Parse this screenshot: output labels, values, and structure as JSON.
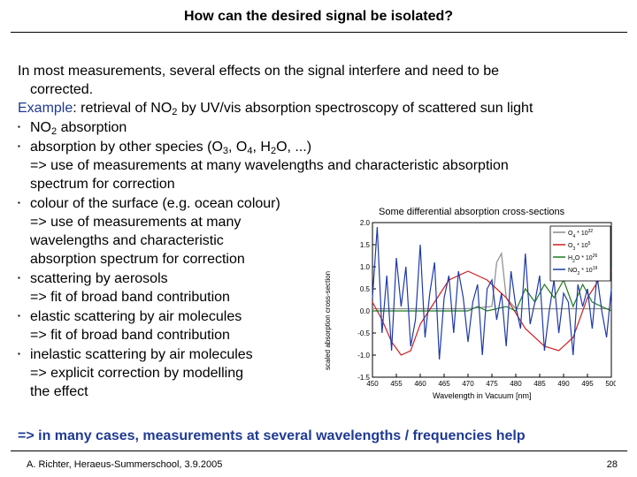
{
  "slide": {
    "title": "How can the desired signal be isolated?",
    "intro_1": "In most measurements, several effects on the signal interfere and need to be",
    "intro_2": "corrected.",
    "example_label": "Example",
    "example_text_a": ": retrieval of NO",
    "example_sub": "2",
    "example_text_b": " by UV/vis absorption spectroscopy of scattered sun light",
    "bullets": {
      "b1_a": "NO",
      "b1_sub": "2",
      "b1_b": " absorption",
      "b2_a": "absorption by other species (O",
      "b2_sub1": "3",
      "b2_b": ", O",
      "b2_sub2": "4",
      "b2_c": ", H",
      "b2_sub3": "2",
      "b2_d": "O, ...)",
      "b2_l2": "=> use of measurements at many wavelengths and characteristic absorption",
      "b2_l3": "spectrum for correction",
      "b3_l1": "colour of the surface (e.g. ocean colour)",
      "b3_l2": "=> use of measurements at many",
      "b3_l3": "wavelengths and characteristic",
      "b3_l4": "absorption spectrum for correction",
      "b4_l1": "scattering by aerosols",
      "b4_l2": "=> fit of broad band contribution",
      "b5_l1": "elastic scattering by air molecules",
      "b5_l2": "=> fit of broad band contribution",
      "b6_l1": "inelastic scattering by air molecules",
      "b6_l2": "=> explicit correction by modelling",
      "b6_l3": "the effect"
    },
    "conclusion": "=> in many cases, measurements at several wavelengths / frequencies help",
    "footer_left": "A. Richter, Heraeus-Summerschool, 3.9.2005",
    "page_number": "28"
  },
  "chart_data": {
    "type": "line",
    "title": "Some differential absorption cross-sections",
    "xlabel": "Wavelength in Vacuum [nm]",
    "ylabel": "scaled absorption cross-section",
    "xlim": [
      450,
      500
    ],
    "ylim": [
      -1.5,
      2.0
    ],
    "xticks": [
      "450",
      "455",
      "460",
      "465",
      "470",
      "475",
      "480",
      "485",
      "490",
      "495",
      "500"
    ],
    "yticks": [
      "-1.5",
      "-1.0",
      "-0.5",
      "0.0",
      "0.5",
      "1.0",
      "1.5",
      "2.0"
    ],
    "series": [
      {
        "name": "O",
        "sub": "4",
        "scale": " * 10",
        "exp": "32",
        "color": "#8c8c8c",
        "x": [
          450,
          455,
          460,
          465,
          470,
          475,
          476,
          477,
          478,
          480,
          485,
          490,
          495,
          500
        ],
        "y": [
          0.05,
          0.05,
          0.05,
          0.05,
          0.05,
          0.1,
          1.1,
          1.3,
          0.3,
          0.05,
          0.05,
          0.05,
          0.05,
          0.05
        ]
      },
      {
        "name": "O",
        "sub": "3",
        "scale": " * 10",
        "exp": "5",
        "color": "#d02020",
        "x": [
          450,
          452,
          454,
          456,
          458,
          460,
          463,
          466,
          470,
          474,
          478,
          482,
          486,
          489,
          492,
          495,
          498,
          500
        ],
        "y": [
          0.2,
          -0.2,
          -0.7,
          -1.0,
          -0.9,
          -0.3,
          0.2,
          0.7,
          0.9,
          0.7,
          0.3,
          -0.4,
          -0.8,
          -0.9,
          -0.6,
          0.3,
          0.8,
          0.9
        ]
      },
      {
        "name": "H",
        "sub": "2",
        "tail": "O",
        "scale": " * 10",
        "exp": "26",
        "color": "#1f7a1f",
        "x": [
          450,
          460,
          468,
          470,
          472,
          474,
          476,
          478,
          480,
          482,
          484,
          486,
          488,
          490,
          492,
          494,
          496,
          500
        ],
        "y": [
          0.0,
          0.0,
          0.0,
          0.0,
          0.1,
          0.0,
          0.05,
          0.1,
          0.0,
          0.5,
          0.2,
          0.6,
          0.3,
          0.7,
          0.1,
          0.6,
          0.2,
          0.0
        ]
      },
      {
        "name": "NO",
        "sub": "2",
        "scale": " * 10",
        "exp": "19",
        "color": "#1f3aa8",
        "x": [
          450,
          451,
          452,
          453,
          454,
          455,
          456,
          457,
          458,
          459,
          460,
          461,
          462,
          463,
          464,
          465,
          466,
          467,
          468,
          469,
          470,
          471,
          472,
          473,
          474,
          475,
          476,
          477,
          478,
          479,
          480,
          481,
          482,
          483,
          484,
          485,
          486,
          487,
          488,
          489,
          490,
          491,
          492,
          493,
          494,
          495,
          496,
          497,
          498,
          499,
          500
        ],
        "y": [
          0.3,
          1.9,
          -0.5,
          0.8,
          -0.9,
          1.2,
          0.1,
          1.0,
          -0.8,
          -0.2,
          1.5,
          -0.6,
          0.4,
          1.1,
          -1.1,
          0.3,
          0.8,
          -0.5,
          0.9,
          0.3,
          -0.7,
          0.2,
          0.6,
          -1.0,
          0.5,
          0.7,
          -0.2,
          0.4,
          -0.8,
          0.9,
          0.1,
          -0.4,
          1.3,
          -0.3,
          0.2,
          0.8,
          -0.9,
          0.0,
          0.7,
          -0.5,
          0.4,
          0.2,
          -1.0,
          0.6,
          0.1,
          0.5,
          -0.4,
          0.8,
          0.0,
          -0.6,
          0.5
        ]
      }
    ],
    "legend": "top-right",
    "grid": false
  }
}
